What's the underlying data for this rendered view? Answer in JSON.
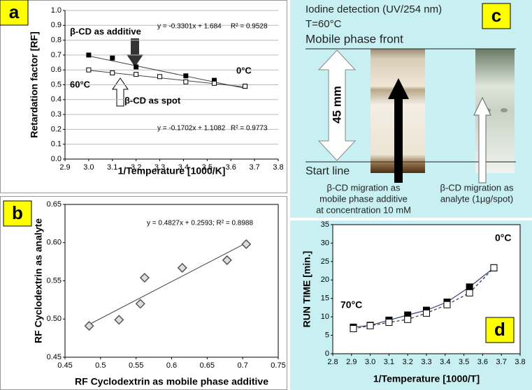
{
  "chart_data": [
    {
      "type": "scatter",
      "panel": "a",
      "xlabel": "1/Temperature [1000/K]",
      "ylabel": "Retardation factor [RF]",
      "xlim": [
        2.9,
        3.8
      ],
      "xticks": [
        2.9,
        {
          "value": 3.0,
          "label": "3.0"
        },
        3.1,
        3.2,
        3.3,
        3.4,
        3.5,
        3.6,
        3.7,
        3.8
      ],
      "ylim": [
        0,
        1
      ],
      "yticks": [
        {
          "value": 0,
          "label": "0.0"
        },
        0.1,
        0.2,
        0.3,
        0.4,
        0.5,
        0.6,
        0.7,
        0.8,
        0.9,
        {
          "value": 1,
          "label": "1.0"
        }
      ],
      "grid": true,
      "series": [
        {
          "marker": "square-filled",
          "color": "#000000",
          "x": [
            3.0,
            3.1,
            3.2,
            3.41,
            3.53,
            3.66
          ],
          "values": [
            0.7,
            0.68,
            0.62,
            0.56,
            0.53,
            0.49
          ],
          "fit": {
            "slope": -0.3301,
            "intercept": 1.684,
            "label": "y = -0.3301x + 1.684",
            "r2_label": "R² = 0.9528"
          }
        },
        {
          "marker": "square-open",
          "color": "#000000",
          "x": [
            3.0,
            3.1,
            3.2,
            3.3,
            3.41,
            3.53,
            3.66
          ],
          "values": [
            0.6,
            0.58,
            0.57,
            0.555,
            0.52,
            0.51,
            0.49
          ],
          "fit": {
            "slope": -0.1702,
            "intercept": 1.1082,
            "label": "y = -0.1702x + 1.1082",
            "r2_label": "R² = 0.9773"
          }
        }
      ],
      "annotations": [
        "β-CD as additive",
        "β-CD as spot",
        "0°C",
        "60°C"
      ]
    },
    {
      "type": "scatter",
      "panel": "b",
      "xlabel": "RF Cyclodextrin as mobile phase additive",
      "ylabel": "RF Cyclodextrin as analyte",
      "xlim": [
        0.45,
        0.75
      ],
      "xticks": [
        0.45,
        0.5,
        0.55,
        0.6,
        0.65,
        0.7,
        0.75
      ],
      "ylim": [
        0.45,
        0.65
      ],
      "yticks": [
        0.45,
        {
          "value": 0.5,
          "label": "0.50"
        },
        0.55,
        {
          "value": 0.6,
          "label": "0.60"
        },
        0.65
      ],
      "grid": false,
      "series": [
        {
          "marker": "diamond",
          "color": "#555555",
          "x": [
            0.484,
            0.526,
            0.556,
            0.562,
            0.615,
            0.678,
            0.705
          ],
          "values": [
            0.491,
            0.499,
            0.52,
            0.554,
            0.567,
            0.577,
            0.598
          ],
          "fit": {
            "slope": 0.4827,
            "intercept": 0.2593,
            "label": "y = 0.4827x + 0.2593; R² = 0.8988"
          }
        }
      ],
      "annotations": []
    },
    {
      "type": "line",
      "panel": "d",
      "xlabel": "1/Temperature [1000/T]",
      "ylabel": "RUN TIME  [min.]",
      "xlim": [
        2.8,
        3.8
      ],
      "xticks": [
        2.8,
        2.9,
        {
          "value": 3.0,
          "label": "3.0"
        },
        3.1,
        3.2,
        3.3,
        3.4,
        3.5,
        3.6,
        3.7,
        3.8
      ],
      "ylim": [
        0,
        35
      ],
      "yticks": [
        0,
        5,
        10,
        15,
        20,
        25,
        30,
        35
      ],
      "grid": false,
      "series": [
        {
          "marker": "square-filled",
          "color": "#000000",
          "line": "#334477",
          "dash": false,
          "x": [
            2.91,
            3.0,
            3.1,
            3.2,
            3.3,
            3.41,
            3.53,
            3.66
          ],
          "values": [
            7.2,
            7.7,
            9.1,
            10.5,
            11.8,
            14.0,
            18.1,
            23.3
          ]
        },
        {
          "marker": "square-open",
          "color": "#000000",
          "line": "#333333",
          "dash": true,
          "x": [
            2.91,
            3.0,
            3.1,
            3.2,
            3.3,
            3.41,
            3.53,
            3.66
          ],
          "values": [
            6.8,
            7.6,
            8.5,
            9.3,
            11.0,
            13.3,
            16.5,
            23.3
          ]
        }
      ],
      "annotations": [
        "0°C",
        "70°C"
      ]
    }
  ],
  "panel_c": {
    "label": "c",
    "detection": "Iodine detection (UV/254 nm)",
    "temperature": "T=60°C",
    "front": "Mobile phase front",
    "distance": "45 mm",
    "start": "Start line",
    "caption_left": [
      "β-CD migration as",
      "mobile phase additive",
      "at concentration 10 mM"
    ],
    "caption_right": [
      "β-CD migration as",
      "analyte (1µg/spot)"
    ]
  }
}
